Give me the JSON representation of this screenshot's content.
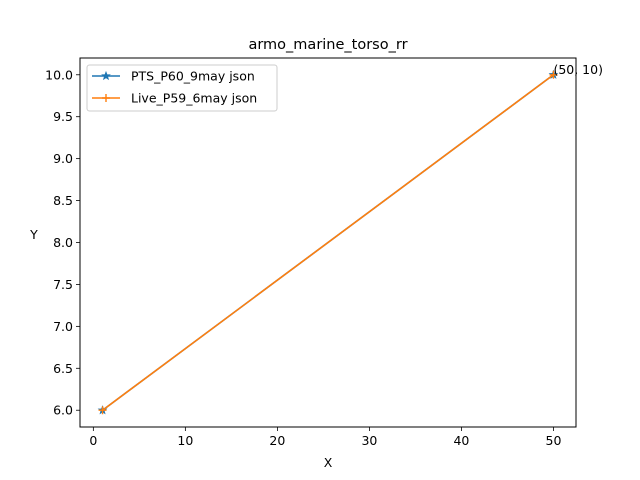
{
  "chart_data": {
    "type": "line",
    "title": "armo_marine_torso_rr",
    "xlabel": "X",
    "ylabel": "Y",
    "xlim": [
      -1.45,
      52.45
    ],
    "ylim": [
      5.8,
      10.2
    ],
    "xticks": [
      0,
      10,
      20,
      30,
      40,
      50
    ],
    "yticks": [
      6.0,
      6.5,
      7.0,
      7.5,
      8.0,
      8.5,
      9.0,
      9.5,
      10.0
    ],
    "grid": false,
    "legend_position": "upper-left",
    "series": [
      {
        "name": "PTS_P60_9may json",
        "x": [
          1,
          50
        ],
        "y": [
          6,
          10
        ],
        "color": "#1f77b4",
        "marker": "star"
      },
      {
        "name": "Live_P59_6may json",
        "x": [
          1,
          50
        ],
        "y": [
          6,
          10
        ],
        "color": "#ff7f0e",
        "marker": "plus"
      }
    ],
    "annotations": [
      {
        "text": "(50, 10)",
        "x": 50,
        "y": 10
      }
    ]
  }
}
